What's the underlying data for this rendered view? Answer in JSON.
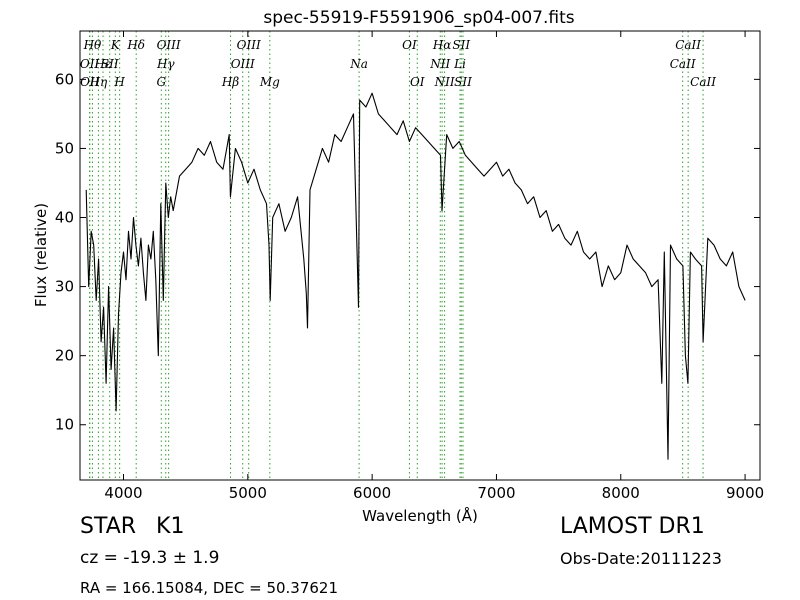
{
  "chart_data": {
    "type": "line",
    "title": "spec-55919-F5591906_sp04-007.fits",
    "xlabel": "Wavelength (Å)",
    "ylabel": "Flux (relative)",
    "xlim": [
      3650,
      9120
    ],
    "ylim": [
      2,
      67
    ],
    "xticks": [
      4000,
      5000,
      6000,
      7000,
      8000,
      9000
    ],
    "yticks": [
      10,
      20,
      30,
      40,
      50,
      60
    ],
    "grid": false,
    "line_color": "#000000",
    "marker_color": "#2ca02c",
    "series": [
      {
        "x": [
          3700,
          3720,
          3740,
          3760,
          3780,
          3800,
          3820,
          3840,
          3860,
          3880,
          3900,
          3920,
          3940,
          3960,
          3980,
          4000,
          4020,
          4040,
          4060,
          4080,
          4100,
          4120,
          4140,
          4160,
          4180,
          4200,
          4220,
          4240,
          4260,
          4280,
          4300,
          4320,
          4340,
          4360,
          4380,
          4400,
          4450,
          4500,
          4550,
          4600,
          4650,
          4700,
          4750,
          4800,
          4850,
          4860,
          4900,
          4950,
          5000,
          5050,
          5100,
          5150,
          5170,
          5180,
          5200,
          5250,
          5300,
          5350,
          5400,
          5450,
          5470,
          5480,
          5500,
          5550,
          5600,
          5650,
          5700,
          5750,
          5800,
          5850,
          5890,
          5900,
          5950,
          6000,
          6050,
          6100,
          6150,
          6200,
          6250,
          6300,
          6350,
          6400,
          6450,
          6500,
          6550,
          6562,
          6600,
          6650,
          6700,
          6750,
          6800,
          6850,
          6900,
          6950,
          7000,
          7050,
          7100,
          7150,
          7200,
          7250,
          7300,
          7350,
          7400,
          7450,
          7500,
          7550,
          7600,
          7650,
          7700,
          7750,
          7800,
          7850,
          7900,
          7950,
          8000,
          8050,
          8100,
          8150,
          8200,
          8250,
          8300,
          8330,
          8350,
          8380,
          8400,
          8450,
          8500,
          8520,
          8540,
          8560,
          8600,
          8650,
          8662,
          8700,
          8750,
          8800,
          8850,
          8900,
          8950,
          9000
        ],
        "y": [
          44,
          30,
          38,
          36,
          28,
          34,
          22,
          27,
          16,
          30,
          18,
          24,
          12,
          26,
          32,
          35,
          31,
          38,
          34,
          40,
          36,
          33,
          37,
          32,
          28,
          36,
          34,
          38,
          31,
          20,
          42,
          28,
          45,
          40,
          43,
          41,
          46,
          47,
          48,
          50,
          49,
          51,
          48,
          47,
          52,
          43,
          50,
          48,
          45,
          47,
          44,
          42,
          36,
          28,
          40,
          42,
          38,
          40,
          43,
          34,
          29,
          24,
          44,
          47,
          50,
          48,
          52,
          51,
          53,
          55,
          27,
          57,
          56,
          58,
          55,
          54,
          53,
          52,
          54,
          51,
          53,
          52,
          51,
          50,
          49,
          41,
          52,
          50,
          51,
          49,
          48,
          47,
          46,
          47,
          48,
          46,
          47,
          45,
          44,
          42,
          43,
          40,
          41,
          38,
          39,
          37,
          36,
          38,
          35,
          34,
          35,
          30,
          33,
          31,
          32,
          36,
          34,
          33,
          32,
          30,
          31,
          16,
          35,
          5,
          36,
          34,
          33,
          20,
          16,
          35,
          34,
          33,
          22,
          37,
          36,
          34,
          33,
          35,
          30,
          28
        ]
      }
    ],
    "lines": [
      {
        "x": 3727,
        "label": "OII",
        "row": 1
      },
      {
        "x": 3729,
        "label": "OII",
        "row": 2
      },
      {
        "x": 3750,
        "label": "Hθ",
        "row": 0
      },
      {
        "x": 3798,
        "label": "Hη",
        "row": 2
      },
      {
        "x": 3835,
        "label": "Hε",
        "row": 1
      },
      {
        "x": 3934,
        "label": "K",
        "row": 0
      },
      {
        "x": 3889,
        "label": "SII",
        "row": 1
      },
      {
        "x": 3969,
        "label": "H",
        "row": 2
      },
      {
        "x": 4102,
        "label": "Hδ",
        "row": 0
      },
      {
        "x": 4304,
        "label": "G",
        "row": 2
      },
      {
        "x": 4340,
        "label": "Hγ",
        "row": 1
      },
      {
        "x": 4363,
        "label": "OIII",
        "row": 0
      },
      {
        "x": 4861,
        "label": "Hβ",
        "row": 2
      },
      {
        "x": 4959,
        "label": "OIII",
        "row": 1
      },
      {
        "x": 5007,
        "label": "OIII",
        "row": 0
      },
      {
        "x": 5177,
        "label": "Mg",
        "row": 2
      },
      {
        "x": 5895,
        "label": "Na",
        "row": 1
      },
      {
        "x": 6300,
        "label": "OI",
        "row": 0
      },
      {
        "x": 6363,
        "label": "OI",
        "row": 2
      },
      {
        "x": 6548,
        "label": "NII",
        "row": 1
      },
      {
        "x": 6563,
        "label": "Hα",
        "row": 0
      },
      {
        "x": 6583,
        "label": "NII",
        "row": 2
      },
      {
        "x": 6707,
        "label": "Li",
        "row": 1
      },
      {
        "x": 6717,
        "label": "SII",
        "row": 0
      },
      {
        "x": 6731,
        "label": "SII",
        "row": 2
      },
      {
        "x": 8498,
        "label": "CaII",
        "row": 1
      },
      {
        "x": 8542,
        "label": "CaII",
        "row": 0
      },
      {
        "x": 8662,
        "label": "CaII",
        "row": 2
      }
    ]
  },
  "info": {
    "class": "STAR",
    "subclass": "K1",
    "redshift": "cz = -19.3 ± 1.9",
    "coords": "RA = 166.15084, DEC = 50.37621",
    "survey": "LAMOST DR1",
    "obs_date": "Obs-Date:20111223"
  }
}
